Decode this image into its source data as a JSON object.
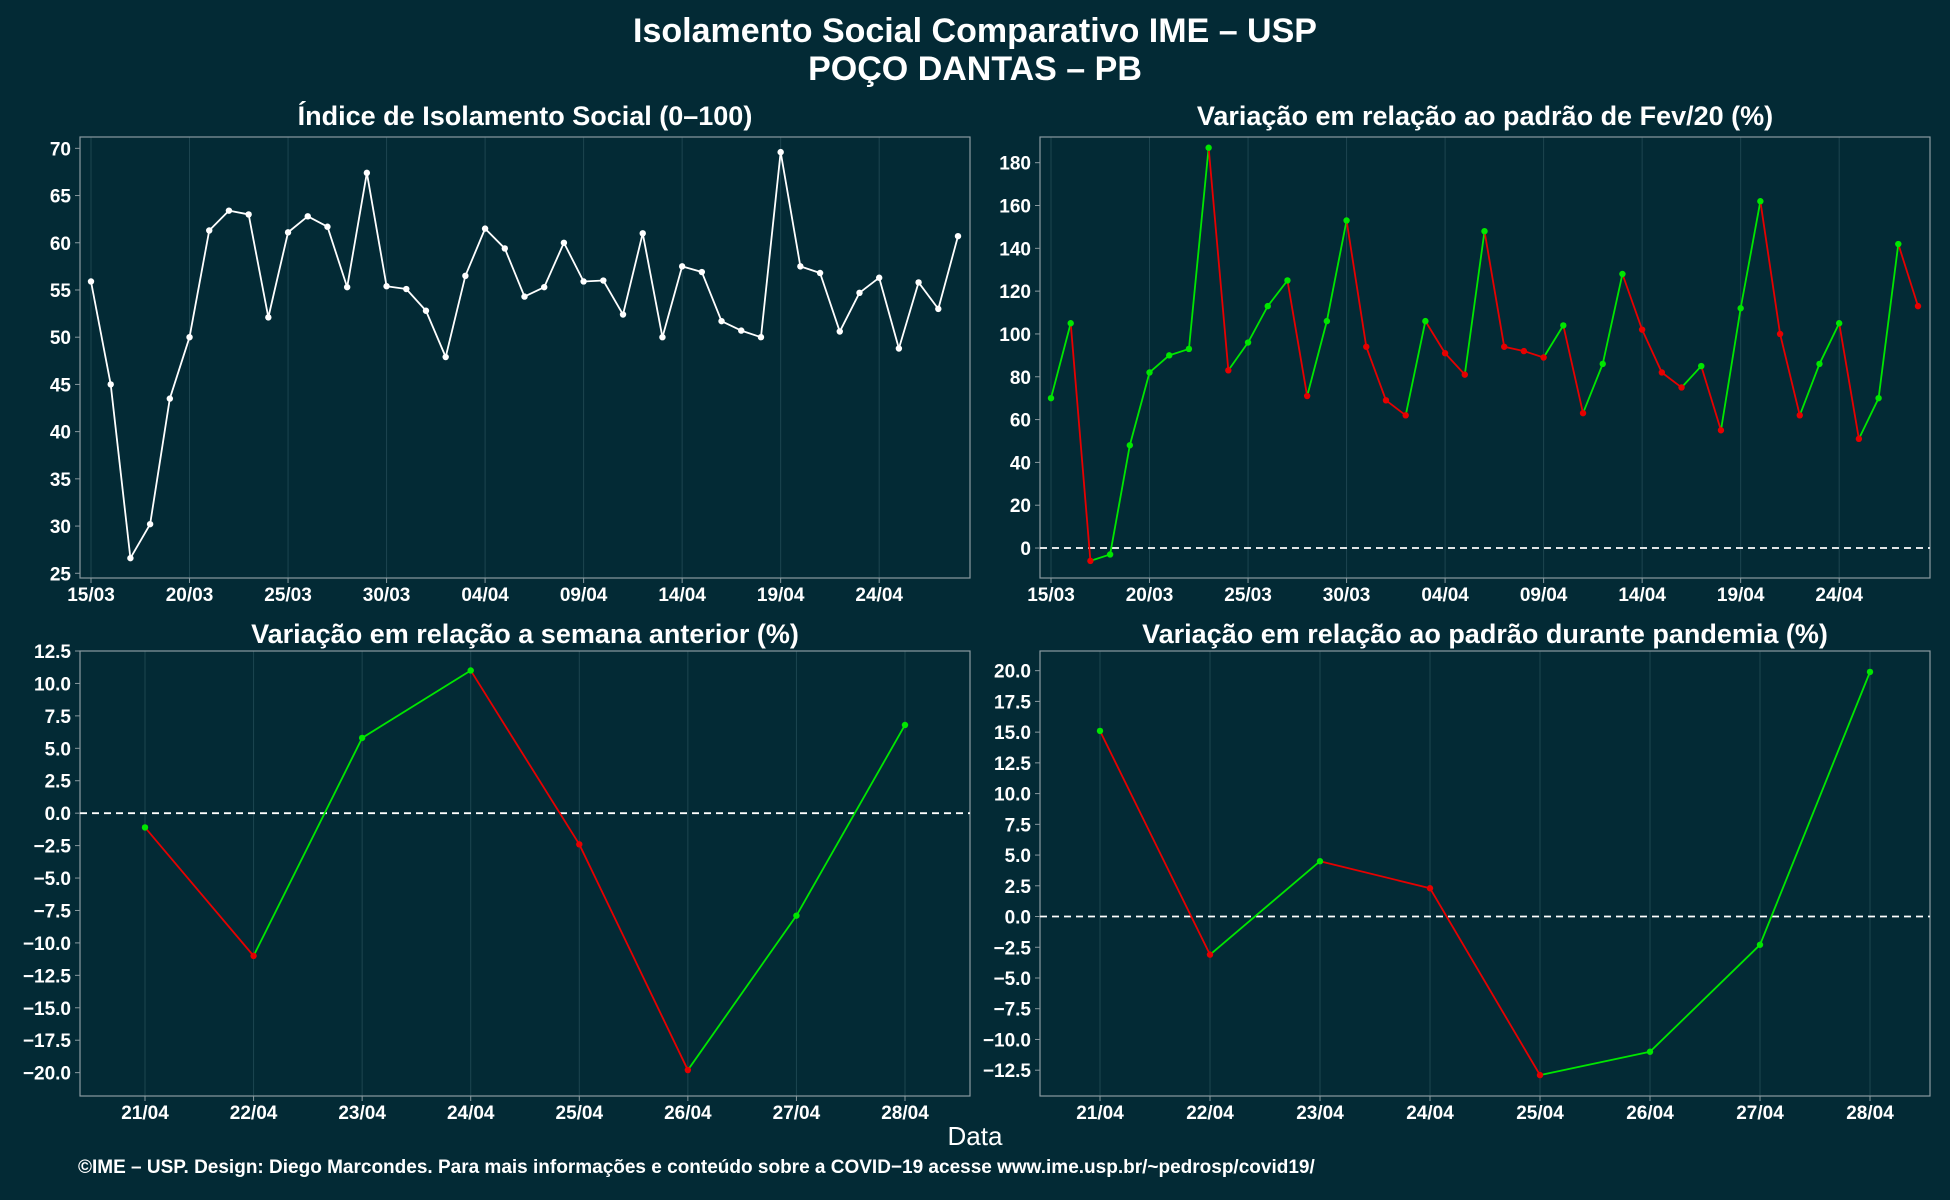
{
  "title": "Isolamento Social Comparativo IME – USP",
  "subtitle": "POÇO DANTAS – PB",
  "x_axis_label": "Data",
  "footer": "©IME – USP. Design: Diego Marcondes. Para mais informações e conteúdo sobre a COVID−19 acesse www.ime.usp.br/~pedrosp/covid19/",
  "colors": {
    "background": "#032a35",
    "white_series": "#ffffff",
    "positive": "#00e600",
    "negative": "#e60000",
    "grid": "#1d4550",
    "axis_border": "#8a9aa0"
  },
  "chart_data": [
    {
      "type": "line",
      "title": "Índice de Isolamento Social (0–100)",
      "x_start": "2020-03-15",
      "x": [
        "15/03",
        "16/03",
        "17/03",
        "18/03",
        "19/03",
        "20/03",
        "21/03",
        "22/03",
        "23/03",
        "24/03",
        "25/03",
        "26/03",
        "27/03",
        "28/03",
        "29/03",
        "30/03",
        "31/03",
        "01/04",
        "02/04",
        "03/04",
        "04/04",
        "05/04",
        "06/04",
        "07/04",
        "08/04",
        "09/04",
        "10/04",
        "11/04",
        "12/04",
        "13/04",
        "14/04",
        "15/04",
        "16/04",
        "17/04",
        "18/04",
        "19/04",
        "20/04",
        "21/04",
        "22/04",
        "23/04",
        "24/04",
        "25/04",
        "26/04",
        "27/04",
        "28/04"
      ],
      "values": [
        55.9,
        45.0,
        26.6,
        30.2,
        43.5,
        50.0,
        61.3,
        63.4,
        63.0,
        52.1,
        61.1,
        62.8,
        61.7,
        55.3,
        67.4,
        55.4,
        55.1,
        52.8,
        47.9,
        56.5,
        61.5,
        59.4,
        54.3,
        55.3,
        60.0,
        55.9,
        56.0,
        52.4,
        61.0,
        50.0,
        57.5,
        56.9,
        51.7,
        50.7,
        50.0,
        69.6,
        57.5,
        56.8,
        50.6,
        54.7,
        56.3,
        48.8,
        55.8,
        53.0,
        60.7
      ],
      "x_ticks": [
        "15/03",
        "20/03",
        "25/03",
        "30/03",
        "04/04",
        "09/04",
        "14/04",
        "19/04",
        "24/04"
      ],
      "y_ticks": [
        "25",
        "30",
        "35",
        "40",
        "45",
        "50",
        "55",
        "60",
        "65",
        "70"
      ],
      "ylim": [
        24.5,
        71.2
      ],
      "color_mode": "single"
    },
    {
      "type": "line",
      "title": "Variação em relação ao padrão de Fev/20 (%)",
      "x_start": "2020-03-15",
      "x": [
        "15/03",
        "16/03",
        "17/03",
        "18/03",
        "19/03",
        "20/03",
        "21/03",
        "22/03",
        "23/03",
        "24/03",
        "25/03",
        "26/03",
        "27/03",
        "28/03",
        "29/03",
        "30/03",
        "31/03",
        "01/04",
        "02/04",
        "03/04",
        "04/04",
        "05/04",
        "06/04",
        "07/04",
        "08/04",
        "09/04",
        "10/04",
        "11/04",
        "12/04",
        "13/04",
        "14/04",
        "15/04",
        "16/04",
        "17/04",
        "18/04",
        "19/04",
        "20/04",
        "21/04",
        "22/04",
        "23/04",
        "24/04",
        "25/04",
        "26/04",
        "27/04",
        "28/04"
      ],
      "values": [
        70,
        105,
        -6,
        -3,
        48,
        82,
        90,
        93,
        187,
        83,
        96,
        113,
        125,
        71,
        106,
        153,
        94,
        69,
        62,
        106,
        91,
        81,
        148,
        94,
        92,
        89,
        104,
        63,
        86,
        128,
        102,
        82,
        75,
        85,
        55,
        112,
        162,
        100,
        62,
        86,
        105,
        51,
        70,
        142,
        113
      ],
      "x_ticks": [
        "15/03",
        "20/03",
        "25/03",
        "30/03",
        "04/04",
        "09/04",
        "14/04",
        "19/04",
        "24/04"
      ],
      "y_ticks": [
        "0",
        "20",
        "40",
        "60",
        "80",
        "100",
        "120",
        "140",
        "160",
        "180"
      ],
      "ylim": [
        -14,
        192
      ],
      "zero_line": true,
      "color_mode": "sign"
    },
    {
      "type": "line",
      "title": "Variação em relação a semana anterior (%)",
      "x": [
        "21/04",
        "22/04",
        "23/04",
        "24/04",
        "25/04",
        "26/04",
        "27/04",
        "28/04"
      ],
      "values": [
        -1.1,
        -11.0,
        5.8,
        11.0,
        -2.4,
        -19.8,
        -7.9,
        6.8
      ],
      "x_ticks": [
        "21/04",
        "22/04",
        "23/04",
        "24/04",
        "25/04",
        "26/04",
        "27/04",
        "28/04"
      ],
      "y_ticks": [
        "−20.0",
        "−17.5",
        "−15.0",
        "−12.5",
        "−10.0",
        "−7.5",
        "−5.0",
        "−2.5",
        "0.0",
        "2.5",
        "5.0",
        "7.5",
        "10.0",
        "12.5"
      ],
      "ylim": [
        -21.8,
        12.5
      ],
      "zero_line": true,
      "color_mode": "sign"
    },
    {
      "type": "line",
      "title": "Variação em relação ao padrão durante pandemia (%)",
      "x": [
        "21/04",
        "22/04",
        "23/04",
        "24/04",
        "25/04",
        "26/04",
        "27/04",
        "28/04"
      ],
      "values": [
        15.1,
        -3.1,
        4.5,
        2.3,
        -12.9,
        -11.0,
        -2.3,
        19.9
      ],
      "x_ticks": [
        "21/04",
        "22/04",
        "23/04",
        "24/04",
        "25/04",
        "26/04",
        "27/04",
        "28/04"
      ],
      "y_ticks": [
        "−12.5",
        "−10.0",
        "−7.5",
        "−5.0",
        "−2.5",
        "0.0",
        "2.5",
        "5.0",
        "7.5",
        "10.0",
        "12.5",
        "15.0",
        "17.5",
        "20.0"
      ],
      "ylim": [
        -14.6,
        21.6
      ],
      "zero_line": true,
      "color_mode": "sign"
    }
  ]
}
